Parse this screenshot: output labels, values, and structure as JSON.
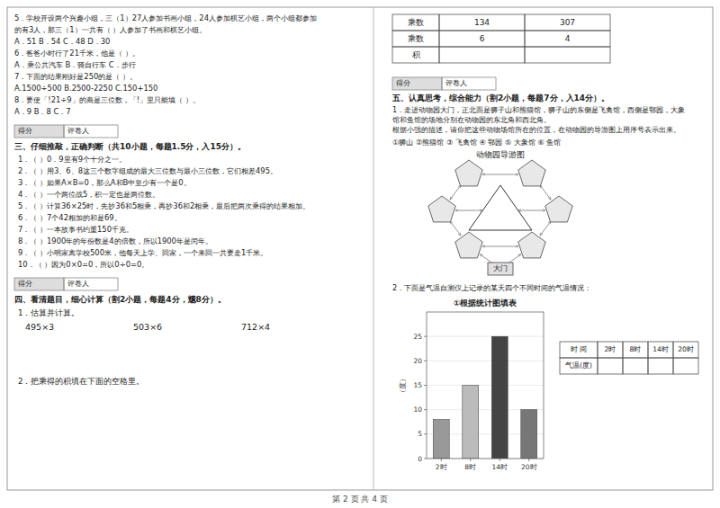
{
  "chart_data": {
    "type": "bar",
    "title": "①根据统计图填表",
    "y_label": "（度）",
    "categories": [
      "2时",
      "8时",
      "14时",
      "20时"
    ],
    "values": [
      8,
      15,
      25,
      10
    ],
    "colors": [
      "#999999",
      "#bbbbbb",
      "#444444",
      "#777777"
    ],
    "ylim": [
      0,
      30
    ],
    "yticks": [
      0,
      5,
      10,
      15,
      20,
      25
    ],
    "grid": true
  },
  "page": {
    "footer": "第 2 页 共 4 页",
    "score_box": [
      "得分",
      "评卷人"
    ],
    "left_col_questions": [
      "5．学校开设两个兴趣小组，三（1）27人参加书画小组，24人参加棋艺小组，两个小组都参加",
      "的有3人，那三（1）一共有（     ）人参加了书画和棋艺小组。",
      "    A．51          B．54          C．48              D．30",
      "6．爸爸小时行了21千米，他是（         ）。",
      "    A．乘公共汽车        B．骑自行车             C．步行",
      "7．下面的结果刚好是250的是（      ）。",
      "    A.1500÷500         B.2500-2250          C.150+150",
      "8．要使「!21÷9」的商是三位数，「!」里只能填（       ）。",
      "    A．9                  B．8                  C．7"
    ],
    "section3_header": "三、仔细推敲，正确判断（共10小题，每题1.5分，入15分）。",
    "section3_items": [
      "1．（    ）0．9里有9个十分之一。",
      "2．（    ）用3、6、8这三个数字组成的最大三位数与最小三位数，它们相差495。",
      "3．（    ）如果A×B=0，那么A和B中至少有一个是0。",
      "4．（    ）一个两位战5，积一定也是两位数。",
      "5．（    ）计算36×25时，先抄36和5相乘，再抄36和2相乘，最后把两次乘得的结果相加。",
      "6．（    ）7个42相加的和是69。",
      "7．（    ）一本故事书约重150千克。",
      "8．（    ）1900年的年份数是4的倍数，所以1900年是闰年。",
      "9．（    ）小明家离学校500米，他每天上学、回家，一个来回一共要走1千米。",
      "10．（    ）因为0×0=0，所以0÷0=0。"
    ],
    "section4_header": "四、看清题目，细心计算（割2小题，每题4分，兤8分）。",
    "section4_sub1": "1．估算并计算。",
    "section4_calcs": [
      "495×3",
      "503×6",
      "712×4"
    ],
    "section4_sub2": "2．把乘得的积填在下面的空格里。",
    "multiplication_table": [
      [
        "乘数",
        "134",
        "307"
      ],
      [
        "乘数",
        "6",
        "4"
      ],
      [
        "积",
        null,
        null
      ]
    ],
    "section5_header": "五、认真思考，综合能力（割2小题，每题7分，入14分）。",
    "section5_q1_lines": [
      "1．走进动物园大门，正北面是狮子山和熊猫馆，狮子山的东侧是飞禽馆，西侧是鄂园，大象",
      "馆和鱼馆的场地分别在动物园的东北角和西北角。",
      "   根据小强的描述，请你把这些动物场馆所在的位置，在动物园的导游图上用序号表示出来。"
    ],
    "section5_q1_labels": "①狮山  ②熊猫馆  ③ 飞禽馆  ④ 鄂园  ⑤ 大象馆  ⑥ 鱼馆",
    "map_title": "动物园导游图",
    "map_gate": "大门",
    "section5_q2_text": "2．下面是气温自测仪上记录的某天四个不同时间的气温情况：",
    "chart_table": {
      "headers": [
        "时  间",
        "2时",
        "8时",
        "14时",
        "20时"
      ],
      "row": [
        "气温(度)",
        null,
        null,
        null,
        null
      ]
    }
  }
}
